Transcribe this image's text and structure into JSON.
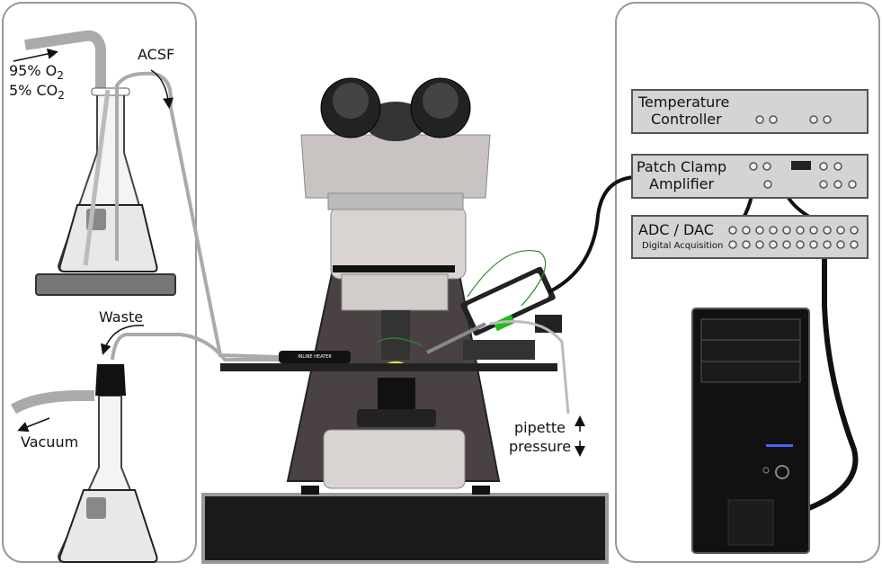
{
  "gas": [
    {
      "text": "95% O",
      "sub": "2"
    },
    {
      "text": "5% CO",
      "sub": "2"
    }
  ],
  "acsf": "ACSF",
  "waste": "Waste",
  "vacuum": "Vacuum",
  "heater": "INLINE HEATER",
  "devices": [
    {
      "lines": [
        "Temperature",
        "Controller"
      ]
    },
    {
      "lines": [
        "Patch Clamp",
        "Amplifier"
      ]
    },
    {
      "lines": [
        "ADC / DAC"
      ],
      "sub": "Digital Acquisition"
    }
  ],
  "pressure": [
    "pipette",
    "pressure"
  ]
}
